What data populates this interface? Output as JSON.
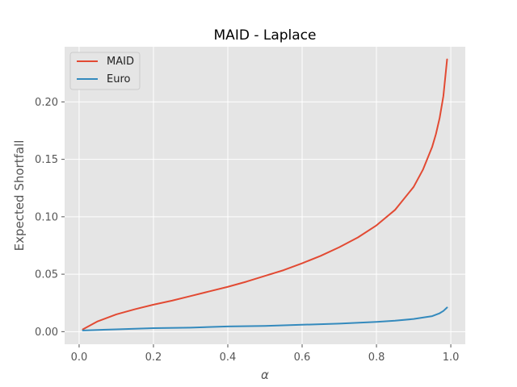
{
  "chart_data": {
    "type": "line",
    "title": "MAID - Laplace",
    "xlabel": "α",
    "ylabel": "Expected Shortfall",
    "xlim": [
      -0.039,
      1.039
    ],
    "ylim": [
      -0.011,
      0.248
    ],
    "xticks": [
      0.0,
      0.2,
      0.4,
      0.6,
      0.8,
      1.0
    ],
    "xtick_labels": [
      "0.0",
      "0.2",
      "0.4",
      "0.6",
      "0.8",
      "1.0"
    ],
    "yticks": [
      0.0,
      0.05,
      0.1,
      0.15,
      0.2
    ],
    "ytick_labels": [
      "0.00",
      "0.05",
      "0.10",
      "0.15",
      "0.20"
    ],
    "grid": true,
    "legend": "top-left",
    "style": "ggplot",
    "series": [
      {
        "name": "MAID",
        "color": "#E24A33",
        "x": [
          0.01,
          0.05,
          0.1,
          0.15,
          0.2,
          0.25,
          0.3,
          0.35,
          0.4,
          0.45,
          0.5,
          0.55,
          0.6,
          0.65,
          0.7,
          0.75,
          0.8,
          0.85,
          0.9,
          0.925,
          0.95,
          0.96,
          0.97,
          0.98,
          0.99
        ],
        "y": [
          0.002,
          0.009,
          0.015,
          0.0195,
          0.0235,
          0.027,
          0.031,
          0.035,
          0.039,
          0.0435,
          0.0485,
          0.0535,
          0.0595,
          0.066,
          0.0735,
          0.082,
          0.0925,
          0.106,
          0.126,
          0.141,
          0.161,
          0.172,
          0.186,
          0.205,
          0.237
        ]
      },
      {
        "name": "Euro",
        "color": "#348ABD",
        "x": [
          0.01,
          0.1,
          0.2,
          0.3,
          0.4,
          0.5,
          0.6,
          0.7,
          0.8,
          0.85,
          0.9,
          0.93,
          0.95,
          0.97,
          0.98,
          0.99
        ],
        "y": [
          0.001,
          0.002,
          0.003,
          0.0035,
          0.0045,
          0.005,
          0.006,
          0.007,
          0.0085,
          0.0095,
          0.011,
          0.0125,
          0.0135,
          0.016,
          0.018,
          0.021
        ]
      }
    ]
  }
}
